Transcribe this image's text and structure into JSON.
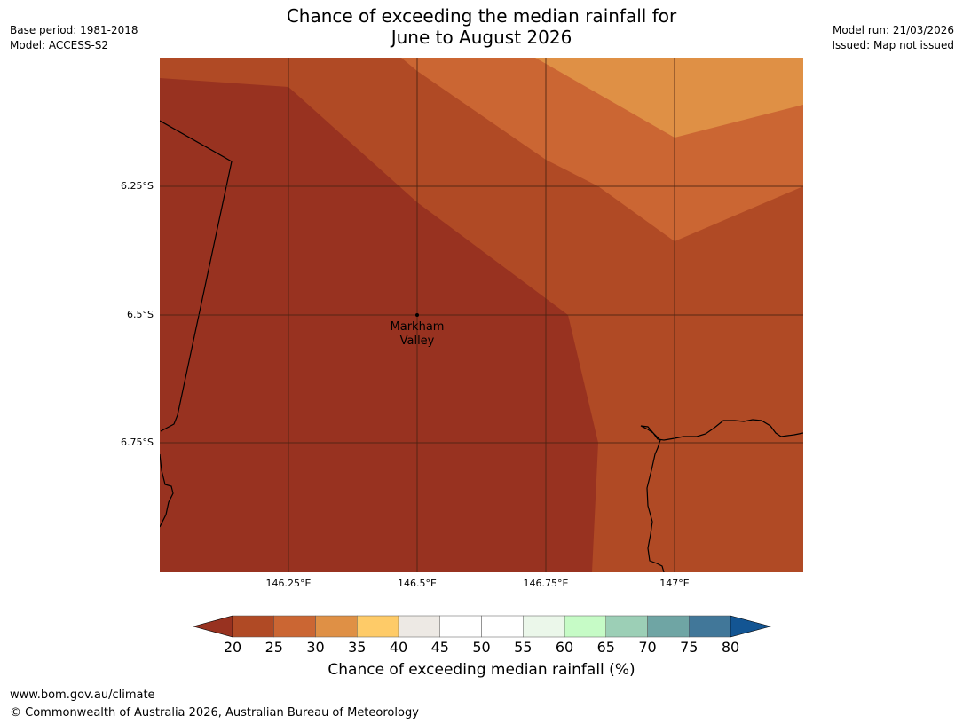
{
  "header": {
    "title_line1": "Chance of exceeding the median rainfall for",
    "title_line2": "June to August 2026",
    "base_period": "Base period: 1981-2018",
    "model": "Model: ACCESS-S2",
    "model_run": "Model run: 21/03/2026",
    "issued": "Issued: Map not issued"
  },
  "map": {
    "place": {
      "name_line1": "Markham",
      "name_line2": "Valley",
      "lat": "6.5°S",
      "lon": "146.5°E"
    },
    "lat_ticks": [
      "6.25°S",
      "6.5°S",
      "6.75°S"
    ],
    "lon_ticks": [
      "146.25°E",
      "146.5°E",
      "146.75°E",
      "147°E"
    ],
    "colors": {
      "c20": "#983220",
      "c25": "#b04a25",
      "c30": "#cb6633",
      "c35": "#df9045",
      "c40": "#fecb68",
      "c45": "#ede9e4",
      "c50": "#ffffff",
      "c55": "#ffffff",
      "c60": "#ebf7ea",
      "c65": "#c6fbc6",
      "c70": "#9ccfb6",
      "c75": "#6fa5a4",
      "c80": "#417799",
      "over": "#135593",
      "grid": "#4a2212",
      "coast": "#000000"
    }
  },
  "colorbar": {
    "ticks": [
      "20",
      "25",
      "30",
      "35",
      "40",
      "45",
      "50",
      "55",
      "60",
      "65",
      "70",
      "75",
      "80"
    ],
    "label": "Chance of exceeding median rainfall (%)"
  },
  "footer": {
    "url": "www.bom.gov.au/climate",
    "copyright": "© Commonwealth of Australia 2026, Australian Bureau of Meteorology"
  }
}
